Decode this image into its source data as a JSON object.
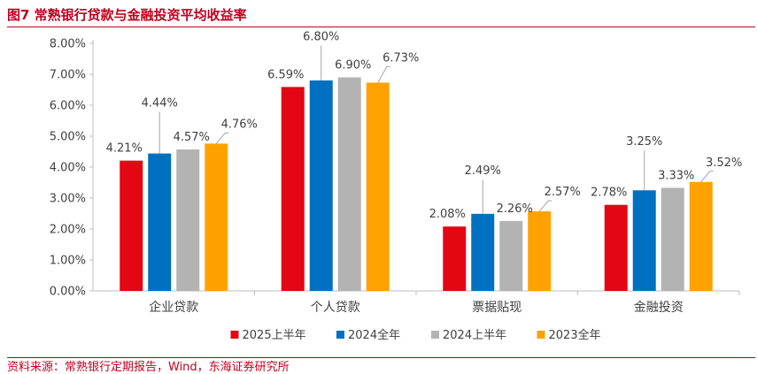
{
  "header": {
    "figure_title": "图7  常熟银行贷款与金融投资平均收益率"
  },
  "footer": {
    "source": "资料来源：常熟银行定期报告，Wind，东海证券研究所"
  },
  "chart_data": {
    "type": "bar",
    "categories": [
      "企业贷款",
      "个人贷款",
      "票据贴现",
      "金融投资"
    ],
    "series": [
      {
        "name": "2025上半年",
        "values": [
          4.21,
          6.59,
          2.08,
          2.78
        ],
        "labels": [
          "4.21%",
          "6.59%",
          "2.08%",
          "2.78%"
        ],
        "color": "#e30613"
      },
      {
        "name": "2024全年",
        "values": [
          4.44,
          6.8,
          2.49,
          3.25
        ],
        "labels": [
          "4.44%",
          "6.80%",
          "2.49%",
          "3.25%"
        ],
        "color": "#0070c0"
      },
      {
        "name": "2024上半年",
        "values": [
          4.57,
          6.9,
          2.26,
          3.33
        ],
        "labels": [
          "4.57%",
          "6.90%",
          "2.26%",
          "3.33%"
        ],
        "color": "#b3b3b3"
      },
      {
        "name": "2023全年",
        "values": [
          4.76,
          6.73,
          2.57,
          3.52
        ],
        "labels": [
          "4.76%",
          "6.73%",
          "2.57%",
          "3.52%"
        ],
        "color": "#ffa200"
      }
    ],
    "yticks": [
      "0.00%",
      "1.00%",
      "2.00%",
      "3.00%",
      "4.00%",
      "5.00%",
      "6.00%",
      "7.00%",
      "8.00%"
    ],
    "ylim": [
      0,
      8
    ],
    "grid": false,
    "legend": "bottom",
    "title": "",
    "xlabel": "",
    "ylabel": ""
  }
}
